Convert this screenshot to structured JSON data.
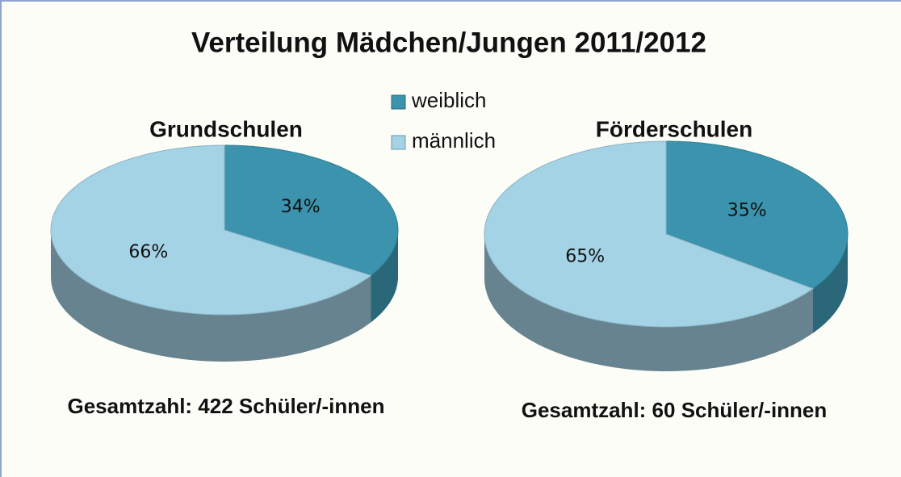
{
  "title": "Verteilung Mädchen/Jungen 2011/2012",
  "chart_data": [
    {
      "type": "pie",
      "title": "Grundschulen",
      "categories": [
        "weiblich",
        "männlich"
      ],
      "values": [
        34,
        66
      ],
      "value_labels": [
        "34%",
        "66%"
      ],
      "colors": [
        "#3b93ad",
        "#a4d3e6"
      ],
      "note": "Gesamtzahl: 422 Schüler/-innen"
    },
    {
      "type": "pie",
      "title": "Förderschulen",
      "categories": [
        "weiblich",
        "männlich"
      ],
      "values": [
        35,
        65
      ],
      "value_labels": [
        "35%",
        "65%"
      ],
      "colors": [
        "#3b93ad",
        "#a4d3e6"
      ],
      "note": "Gesamtzahl: 60 Schüler/-innen"
    }
  ]
}
